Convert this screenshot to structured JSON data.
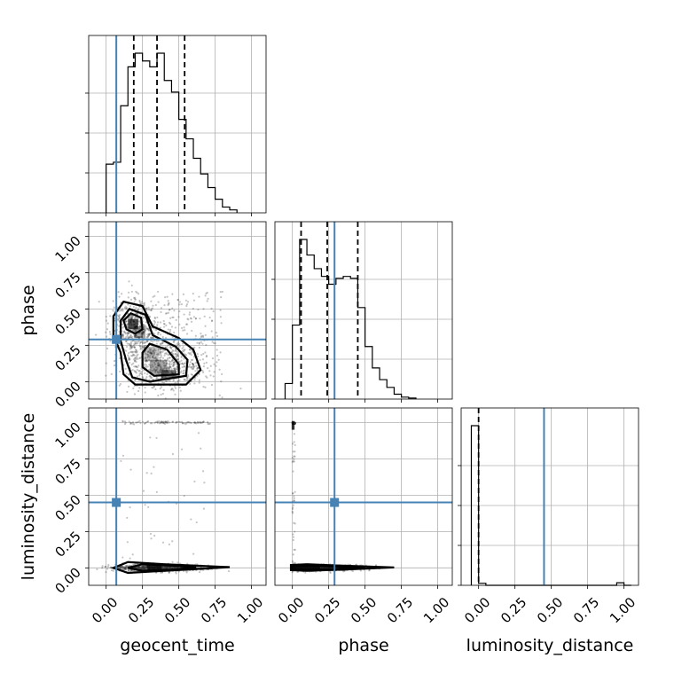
{
  "chart_data": {
    "type": "corner",
    "parameters": [
      "geocent_time",
      "phase",
      "luminosity_distance"
    ],
    "truth_values": {
      "geocent_time": 0.07,
      "phase": 0.29,
      "luminosity_distance": 0.45
    },
    "axis_range": [
      -0.12,
      1.1
    ],
    "tick_values": [
      0.0,
      0.25,
      0.5,
      0.75,
      1.0
    ],
    "tick_labels": [
      "0.00",
      "0.25",
      "0.50",
      "0.75",
      "1.00"
    ],
    "grid": true,
    "colors": {
      "truth": "#4682b4",
      "hist": "#000000",
      "density": "#000000"
    },
    "marginals": [
      {
        "parameter": "geocent_time",
        "bin_edges": [
          0.0,
          0.05,
          0.1,
          0.15,
          0.2,
          0.25,
          0.3,
          0.35,
          0.4,
          0.45,
          0.5,
          0.55,
          0.6,
          0.65,
          0.7,
          0.75,
          0.8,
          0.85,
          0.9
        ],
        "counts": [
          0.25,
          0.26,
          0.55,
          0.75,
          0.82,
          0.78,
          0.75,
          0.82,
          0.68,
          0.62,
          0.48,
          0.38,
          0.28,
          0.2,
          0.13,
          0.07,
          0.03,
          0.015
        ],
        "quantiles": [
          0.19,
          0.35,
          0.54
        ]
      },
      {
        "parameter": "phase",
        "bin_edges": [
          -0.05,
          0.0,
          0.05,
          0.1,
          0.15,
          0.2,
          0.25,
          0.3,
          0.35,
          0.4,
          0.45,
          0.5,
          0.55,
          0.6,
          0.65,
          0.7,
          0.75,
          0.8,
          0.85
        ],
        "counts": [
          0.08,
          0.38,
          0.82,
          0.74,
          0.67,
          0.63,
          0.59,
          0.62,
          0.63,
          0.62,
          0.47,
          0.27,
          0.16,
          0.1,
          0.06,
          0.025,
          0.01,
          0.005
        ],
        "quantiles": [
          0.06,
          0.24,
          0.45
        ]
      },
      {
        "parameter": "luminosity_distance",
        "bin_edges": [
          -0.05,
          0.0,
          0.05,
          0.1,
          0.95,
          1.0,
          1.05
        ],
        "counts": [
          0.93,
          0.012,
          0.0,
          0.0,
          0.015,
          0.0
        ],
        "quantiles": [
          0.0
        ]
      }
    ]
  }
}
